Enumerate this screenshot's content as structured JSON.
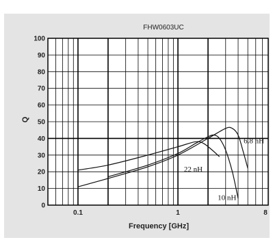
{
  "chart_data": {
    "type": "line",
    "title": "FHW0603UC",
    "xlabel": "Frequency [GHz]",
    "ylabel": "Q",
    "x_scale": "log",
    "xlim": [
      0.05,
      8
    ],
    "ylim": [
      0,
      100
    ],
    "x_ticks": [
      {
        "value": 0.1,
        "label": "0.1"
      },
      {
        "value": 1,
        "label": "1"
      },
      {
        "value": 8,
        "label": "8"
      }
    ],
    "y_ticks": [
      0,
      10,
      20,
      30,
      40,
      50,
      60,
      70,
      80,
      90,
      100
    ],
    "grid": true,
    "highlight_lines": {
      "x": [
        0.2,
        2
      ],
      "y": [
        40
      ]
    },
    "series": [
      {
        "name": "6.8 nH",
        "x": [
          0.1,
          0.2,
          0.5,
          1,
          2,
          3,
          3.5,
          4,
          4.5,
          5
        ],
        "y": [
          11,
          16,
          23,
          30,
          40,
          46,
          46,
          42,
          32,
          22
        ]
      },
      {
        "name": "10 nH",
        "x": [
          0.2,
          0.5,
          1,
          1.5,
          2,
          2.3,
          2.6,
          3,
          3.5,
          4
        ],
        "y": [
          17,
          24,
          31,
          37,
          41,
          42,
          40,
          33,
          20,
          4
        ]
      },
      {
        "name": "22 nH",
        "x": [
          0.1,
          0.2,
          0.5,
          1,
          1.5,
          1.8,
          2.2,
          2.6
        ],
        "y": [
          21,
          24,
          30,
          35,
          38,
          37,
          33,
          29
        ]
      }
    ]
  }
}
